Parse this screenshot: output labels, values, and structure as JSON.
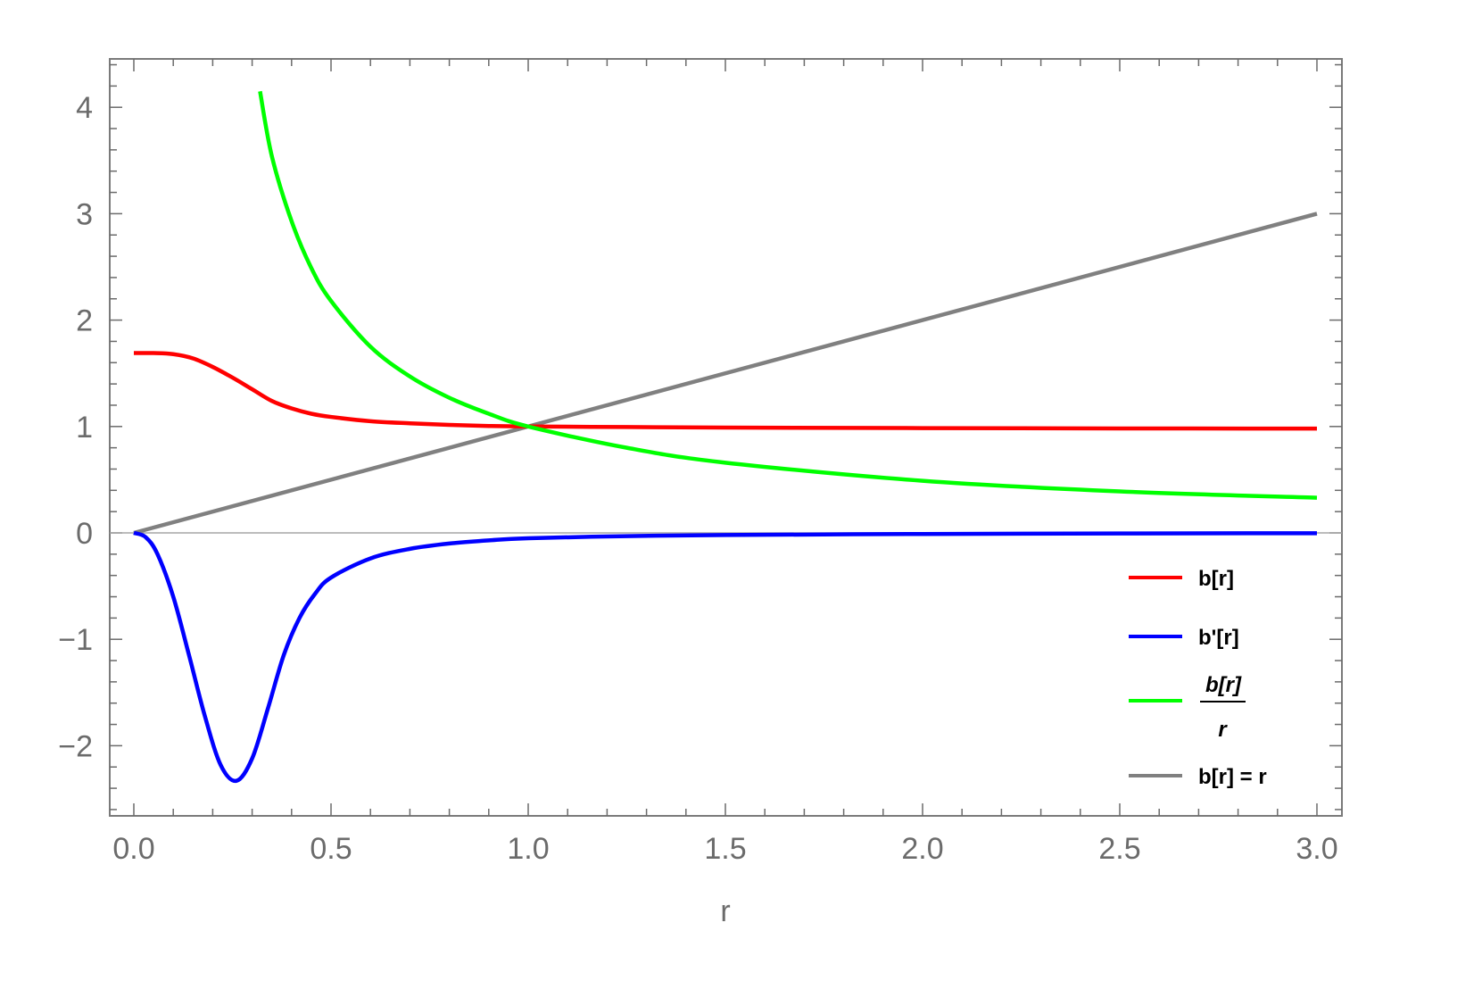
{
  "chart_data": {
    "type": "line",
    "title": "",
    "xlabel": "r",
    "ylabel": "",
    "xlim": [
      -0.06,
      3.06
    ],
    "ylim": [
      -2.7,
      4.5
    ],
    "grid": false,
    "legend_position": "lower right (inside plot)",
    "x_ticks": [
      "0.0",
      "0.5",
      "1.0",
      "1.5",
      "2.0",
      "2.5",
      "3.0"
    ],
    "y_ticks": [
      "-2",
      "-1",
      "0",
      "1",
      "2",
      "3",
      "4"
    ],
    "series": [
      {
        "name": "b[r]",
        "color": "#ff0000",
        "x": [
          0.0,
          0.05,
          0.1,
          0.15,
          0.2,
          0.25,
          0.3,
          0.35,
          0.4,
          0.45,
          0.5,
          0.6,
          0.7,
          0.8,
          0.9,
          1.0,
          1.25,
          1.5,
          2.0,
          2.5,
          3.0
        ],
        "values": [
          1.69,
          1.69,
          1.68,
          1.64,
          1.56,
          1.46,
          1.35,
          1.24,
          1.17,
          1.12,
          1.09,
          1.05,
          1.03,
          1.015,
          1.005,
          1.0,
          0.995,
          0.99,
          0.985,
          0.982,
          0.98
        ]
      },
      {
        "name": "b'[r]",
        "color": "#0000ff",
        "x": [
          0.0,
          0.03,
          0.06,
          0.1,
          0.14,
          0.18,
          0.22,
          0.26,
          0.3,
          0.34,
          0.38,
          0.42,
          0.46,
          0.5,
          0.6,
          0.7,
          0.8,
          0.9,
          1.0,
          1.25,
          1.5,
          2.0,
          2.5,
          3.0
        ],
        "values": [
          0.0,
          -0.04,
          -0.2,
          -0.6,
          -1.15,
          -1.72,
          -2.18,
          -2.33,
          -2.12,
          -1.65,
          -1.15,
          -0.8,
          -0.57,
          -0.42,
          -0.24,
          -0.15,
          -0.1,
          -0.07,
          -0.05,
          -0.03,
          -0.02,
          -0.01,
          -0.005,
          -0.003
        ]
      },
      {
        "name": "b[r]/r",
        "color": "#00ff00",
        "x": [
          0.32,
          0.35,
          0.4,
          0.45,
          0.5,
          0.6,
          0.7,
          0.8,
          0.9,
          1.0,
          1.25,
          1.5,
          2.0,
          2.5,
          3.0
        ],
        "values": [
          4.15,
          3.54,
          2.93,
          2.49,
          2.18,
          1.75,
          1.47,
          1.27,
          1.12,
          1.0,
          0.8,
          0.66,
          0.49,
          0.39,
          0.33
        ]
      },
      {
        "name": "b[r] = r",
        "color": "#808080",
        "x": [
          0.0,
          3.0
        ],
        "values": [
          0.0,
          3.0
        ]
      }
    ],
    "legend": [
      {
        "label": "b[r]",
        "color": "#ff0000"
      },
      {
        "label": "b'[r]",
        "color": "#0000ff"
      },
      {
        "label_numerator": "b[r]",
        "label_denominator": "r",
        "color": "#00ff00"
      },
      {
        "label": "b[r] = r",
        "color": "#808080"
      }
    ]
  },
  "axis_color": "#6b6b6b"
}
